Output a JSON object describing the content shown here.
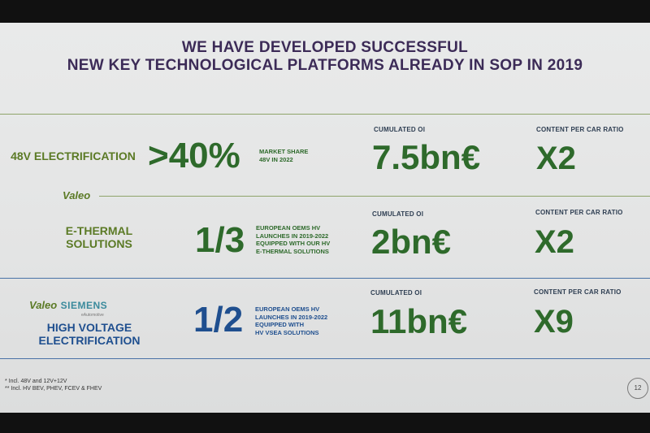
{
  "header": {
    "line1": "WE HAVE DEVELOPED SUCCESSFUL",
    "line2": "NEW KEY TECHNOLOGICAL PLATFORMS ALREADY IN SOP IN 2019"
  },
  "rows": [
    {
      "label": "48V ELECTRIFICATION",
      "big_value": ">40%",
      "desc": [
        "MARKET SHARE",
        "48V IN 2022"
      ],
      "oi_caption": "CUMULATED OI",
      "oi_value": "7.5bn€",
      "ratio_caption": "CONTENT PER CAR RATIO",
      "ratio_value": "X2"
    },
    {
      "label": [
        "E-THERMAL",
        "SOLUTIONS"
      ],
      "big_value": "1/3",
      "desc": [
        "EUROPEAN OEMS HV",
        "LAUNCHES IN 2019-2022",
        "EQUIPPED WITH OUR HV",
        "E-THERMAL SOLUTIONS"
      ],
      "oi_caption": "CUMULATED OI",
      "oi_value": "2bn€",
      "ratio_caption": "CONTENT PER CAR RATIO",
      "ratio_value": "X2"
    },
    {
      "label": [
        "HIGH VOLTAGE",
        "ELECTRIFICATION"
      ],
      "big_value": "1/2",
      "desc": [
        "EUROPEAN OEMS HV",
        "LAUNCHES IN 2019-2022",
        "EQUIPPED WITH",
        "HV VSEA SOLUTIONS"
      ],
      "oi_caption": "CUMULATED OI",
      "oi_value": "11bn€",
      "ratio_caption": "CONTENT PER CAR RATIO",
      "ratio_value": "X9"
    }
  ],
  "logos": {
    "valeo": "Valeo",
    "valeo_siemens_a": "Valeo",
    "valeo_siemens_b": "SIEMENS",
    "valeo_siemens_sub": "eAutomotive"
  },
  "footnotes": [
    "* Incl. 48V and 12V+12V",
    "** Incl. HV BEV, PHEV, FCEV & FHEV"
  ],
  "page_number": "12",
  "colors": {
    "title": "#3c2b57",
    "green_label": "#5b7a25",
    "dark_green": "#2e6a2b",
    "blue": "#1f4f8f"
  }
}
